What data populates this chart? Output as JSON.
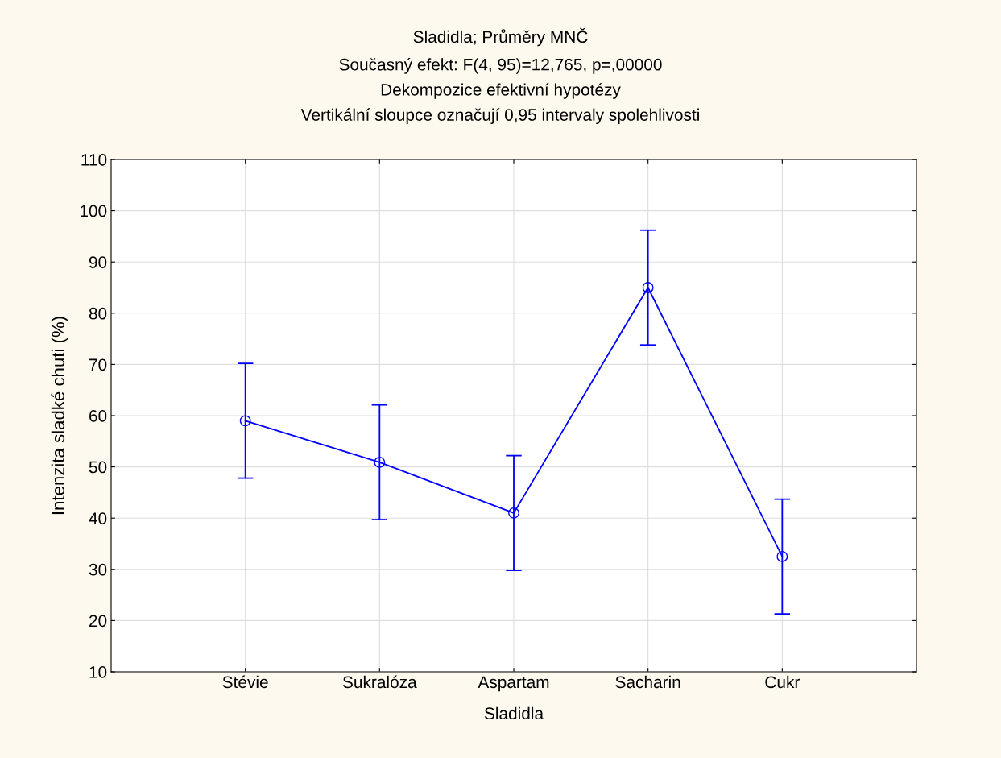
{
  "chart_data": {
    "type": "line",
    "title": "Sladidla; Průměry MNČ",
    "subtitle": "Současný efekt: F(4, 95)=12,765, p=,00000\nDekompozice efektivní hypotézy\nVertikální sloupce označují 0,95 intervaly spolehlivosti",
    "xlabel": "Sladidla",
    "ylabel": "Intenzita sladké chuti (%)",
    "categories": [
      "Stévie",
      "Sukralóza",
      "Aspartam",
      "Sacharin",
      "Cukr"
    ],
    "series": [
      {
        "color": "#0000ff",
        "values": [
          59.0,
          50.9,
          41.0,
          85.0,
          32.5
        ],
        "errors": [
          11.2,
          11.2,
          11.2,
          11.2,
          11.2
        ]
      }
    ],
    "ylim": [
      10,
      110
    ],
    "yticks": [
      10,
      20,
      30,
      40,
      50,
      60,
      70,
      80,
      90,
      100,
      110
    ],
    "grid": true,
    "marker": "circle",
    "line_style": "solid",
    "legend": false
  }
}
